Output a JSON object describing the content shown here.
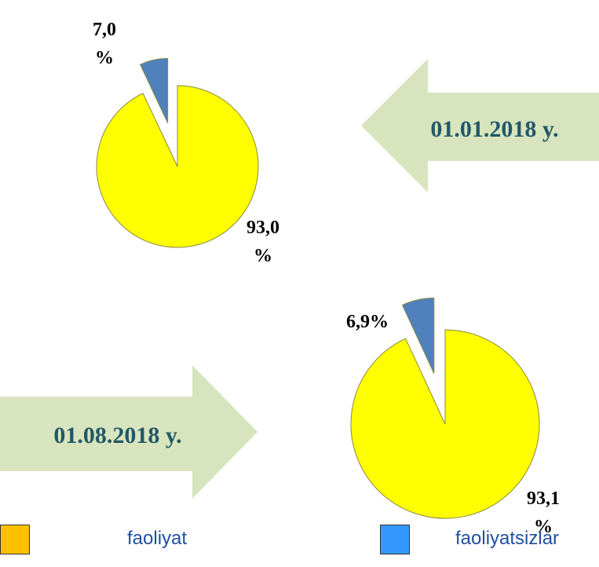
{
  "chart_data": [
    {
      "type": "pie",
      "title": "01.01.2018 y.",
      "values": [
        93.0,
        7.0
      ],
      "value_labels": [
        "93,0 %",
        "7,0 %"
      ],
      "colors": [
        "#ffff00",
        "#4f81bd"
      ]
    },
    {
      "type": "pie",
      "title": "01.08.2018 y.",
      "values": [
        93.1,
        6.9
      ],
      "value_labels": [
        "93,1 %",
        "6,9%"
      ],
      "colors": [
        "#ffff00",
        "#4f81bd"
      ]
    }
  ],
  "legend": {
    "items": [
      {
        "label": "faoliyat",
        "color": "#ffc000"
      },
      {
        "label": "faoliyatsizlar",
        "color": "#3399ff"
      }
    ]
  }
}
